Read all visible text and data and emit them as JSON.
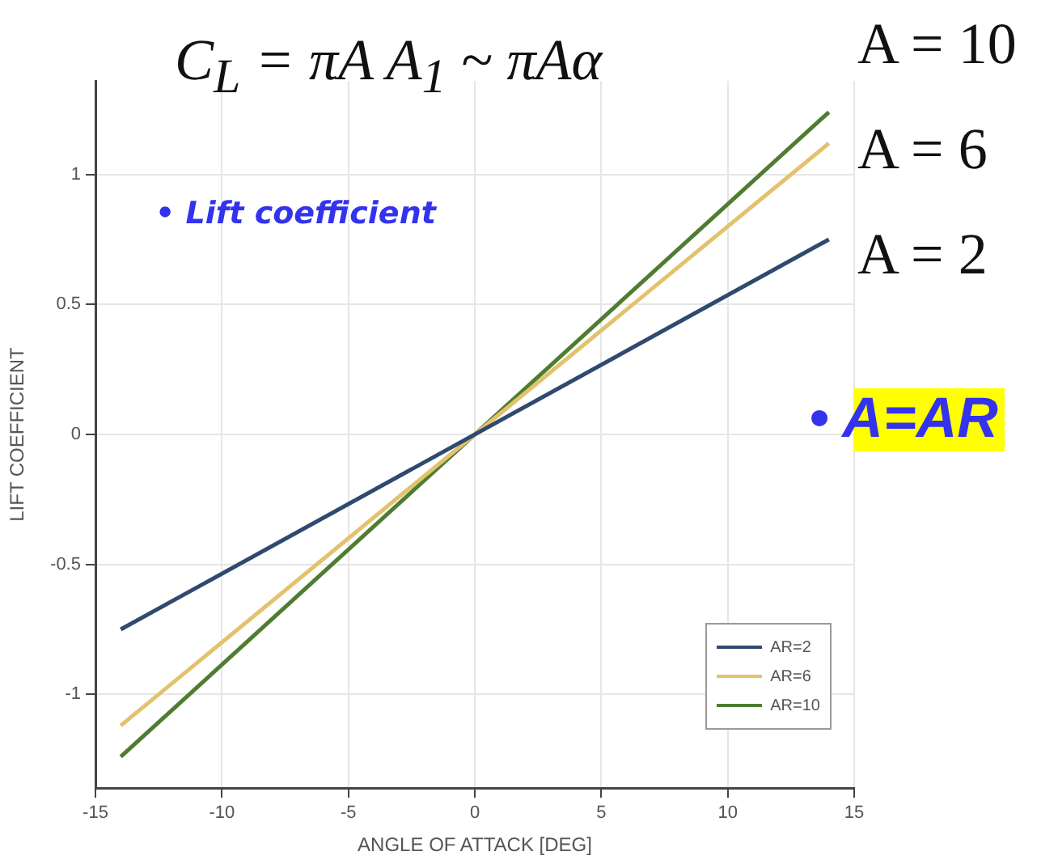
{
  "chart_data": {
    "type": "line",
    "xlabel": "ANGLE OF ATTACK [DEG]",
    "ylabel": "LIFT COEFFICIENT",
    "x": [
      -14,
      14
    ],
    "series": [
      {
        "name": "AR=2",
        "color": "#2f4a6e",
        "values": [
          -0.75,
          0.75
        ]
      },
      {
        "name": "AR=6",
        "color": "#e3c26e",
        "values": [
          -1.12,
          1.12
        ]
      },
      {
        "name": "AR=10",
        "color": "#4e7d32",
        "values": [
          -1.24,
          1.24
        ]
      }
    ],
    "xlim": [
      -15,
      15
    ],
    "xticks": [
      -15,
      -10,
      -5,
      0,
      5,
      10,
      15
    ],
    "ylim": [
      -1.36,
      1.36
    ],
    "yticks": [
      -1,
      -0.5,
      0,
      0.5,
      1
    ],
    "grid": true,
    "legend": "bottom right",
    "marker": "none",
    "line_style": "solid",
    "annotations": [
      "C$_{L}$ = πA A$_{1}$ ~ πAα",
      "A = 10",
      "A = 6",
      "A = 2",
      "• Lift coefficient",
      "• A=AR"
    ]
  }
}
